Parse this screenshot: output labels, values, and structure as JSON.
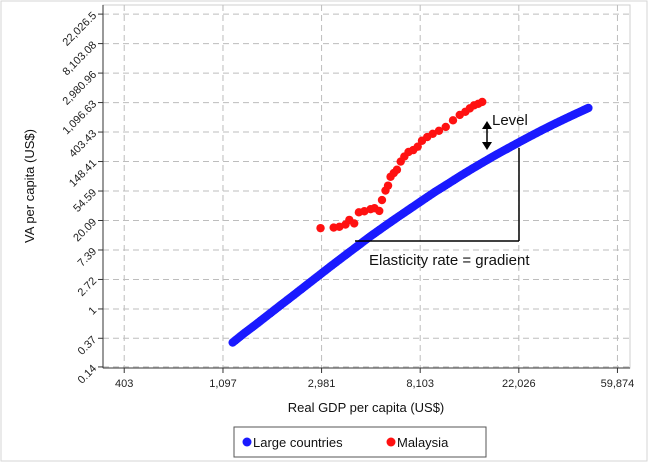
{
  "chart_data": {
    "type": "scatter",
    "xlabel": "Real GDP per capita (US$)",
    "ylabel": "VA per capita (US$)",
    "x_scale": "log",
    "y_scale": "log",
    "xlim": [
      325,
      68000
    ],
    "ylim": [
      0.135,
      30000
    ],
    "x_ticks": [
      {
        "value": 403,
        "label": "403"
      },
      {
        "value": 1097,
        "label": "1,097"
      },
      {
        "value": 2981,
        "label": "2,981"
      },
      {
        "value": 8103,
        "label": "8,103"
      },
      {
        "value": 22026,
        "label": "22,026"
      },
      {
        "value": 59874,
        "label": "59,874"
      }
    ],
    "y_ticks": [
      {
        "value": 0.14,
        "label": "0.14"
      },
      {
        "value": 0.37,
        "label": "0.37"
      },
      {
        "value": 1,
        "label": "1"
      },
      {
        "value": 2.72,
        "label": "2.72"
      },
      {
        "value": 7.39,
        "label": "7.39"
      },
      {
        "value": 20.09,
        "label": "20.09"
      },
      {
        "value": 54.59,
        "label": "54.59"
      },
      {
        "value": 148.41,
        "label": "148.41"
      },
      {
        "value": 403.43,
        "label": "403.43"
      },
      {
        "value": 1096.63,
        "label": "1,096.63"
      },
      {
        "value": 2980.96,
        "label": "2,980.96"
      },
      {
        "value": 8103.08,
        "label": "8,103.08"
      },
      {
        "value": 22026.5,
        "label": "22,026.5"
      }
    ],
    "grid": true,
    "legend_position": "bottom",
    "series": [
      {
        "name": "Large countries",
        "color": "#1a1aff",
        "x": [
          1210,
          1350,
          1520,
          1720,
          1950,
          2220,
          2530,
          2890,
          3300,
          3770,
          4300,
          4900,
          5600,
          6400,
          7300,
          8300,
          9400,
          10700,
          12100,
          13700,
          15500,
          17500,
          19800,
          22300,
          25100,
          28200,
          31700,
          35600,
          39900,
          44600
        ],
        "y": [
          0.32,
          0.43,
          0.58,
          0.8,
          1.11,
          1.55,
          2.18,
          3.08,
          4.35,
          6.1,
          8.5,
          11.8,
          16.2,
          22.1,
          29.8,
          39.9,
          52.8,
          69.2,
          89.9,
          115.7,
          147.6,
          186.7,
          233.9,
          290.7,
          358.7,
          439.1,
          533.3,
          642.9,
          768.9,
          912.3
        ]
      },
      {
        "name": "Malaysia",
        "color": "#ff1111",
        "x": [
          2950,
          3370,
          3570,
          3800,
          3950,
          4150,
          4350,
          4600,
          4900,
          5100,
          5350,
          5500,
          5700,
          5850,
          6000,
          6200,
          6400,
          6650,
          6900,
          7200,
          7550,
          7900,
          8250,
          8700,
          9200,
          9800,
          10500,
          11300,
          12100,
          12800,
          13400,
          14000,
          14600,
          15200
        ],
        "y": [
          15.5,
          15.8,
          16.2,
          17.5,
          20.5,
          18.2,
          26.5,
          27.5,
          29.5,
          30.5,
          27.8,
          40.2,
          55.5,
          65.5,
          88.5,
          100.5,
          112.3,
          148.2,
          175.5,
          205.3,
          218.7,
          245.8,
          300.3,
          340.5,
          380.2,
          420.8,
          480.1,
          600.4,
          720.2,
          800.5,
          900.3,
          1000.5,
          1050.2,
          1120.4
        ]
      }
    ],
    "annotations": {
      "level": "Level",
      "elasticity": "Elasticity rate = gradient"
    }
  }
}
